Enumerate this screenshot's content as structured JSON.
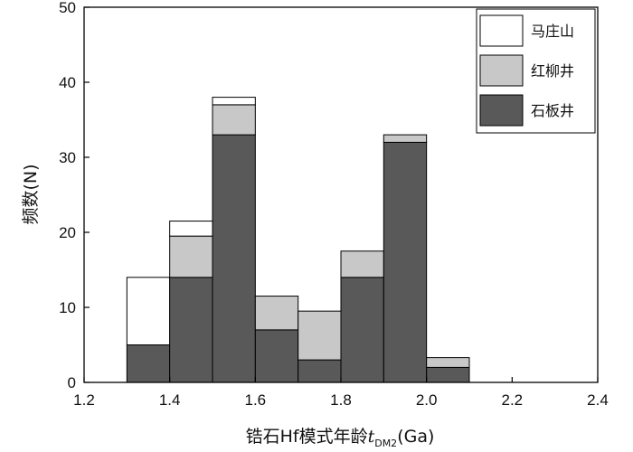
{
  "chart_data": {
    "type": "bar",
    "stacked": true,
    "x_bins": [
      [
        1.3,
        1.4
      ],
      [
        1.4,
        1.5
      ],
      [
        1.5,
        1.6
      ],
      [
        1.6,
        1.7
      ],
      [
        1.7,
        1.8
      ],
      [
        1.8,
        1.9
      ],
      [
        1.9,
        2.0
      ],
      [
        2.0,
        2.1
      ]
    ],
    "series": [
      {
        "name": "石板井",
        "color": "#595959",
        "values": [
          5,
          14,
          33,
          7,
          3,
          14,
          32,
          2
        ]
      },
      {
        "name": "红柳井",
        "color": "#c8c8c8",
        "values": [
          0,
          5.5,
          4,
          4.5,
          6.5,
          3.5,
          1,
          1.3
        ]
      },
      {
        "name": "马庄山",
        "color": "#ffffff",
        "values": [
          9,
          2,
          1,
          0,
          0,
          0,
          0,
          0
        ]
      }
    ],
    "xlim": [
      1.2,
      2.4
    ],
    "ylim": [
      0,
      50
    ],
    "x_ticks": [
      "1.2",
      "1.4",
      "1.6",
      "1.8",
      "2.0",
      "2.2",
      "2.4"
    ],
    "y_ticks": [
      "0",
      "10",
      "20",
      "30",
      "40",
      "50"
    ],
    "xlabel_main": "锆石Hf模式年龄",
    "xlabel_var": "t",
    "xlabel_sub": "DM2",
    "xlabel_unit": "(Ga)",
    "ylabel": "频数(N)",
    "legend_position": "top-right",
    "grid": false
  }
}
